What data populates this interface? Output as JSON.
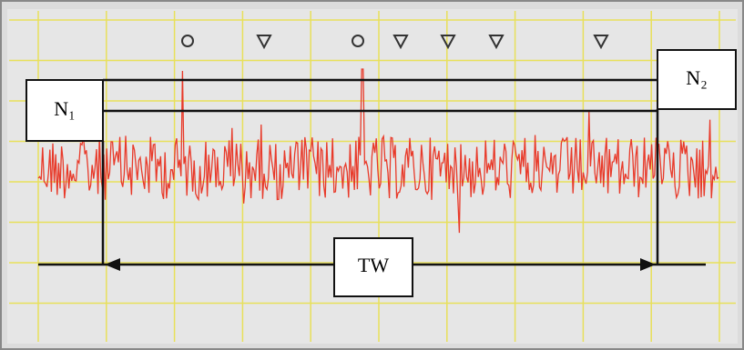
{
  "labels": {
    "n1": "N₁",
    "n2": "N₂",
    "tw": "TW"
  }
}
